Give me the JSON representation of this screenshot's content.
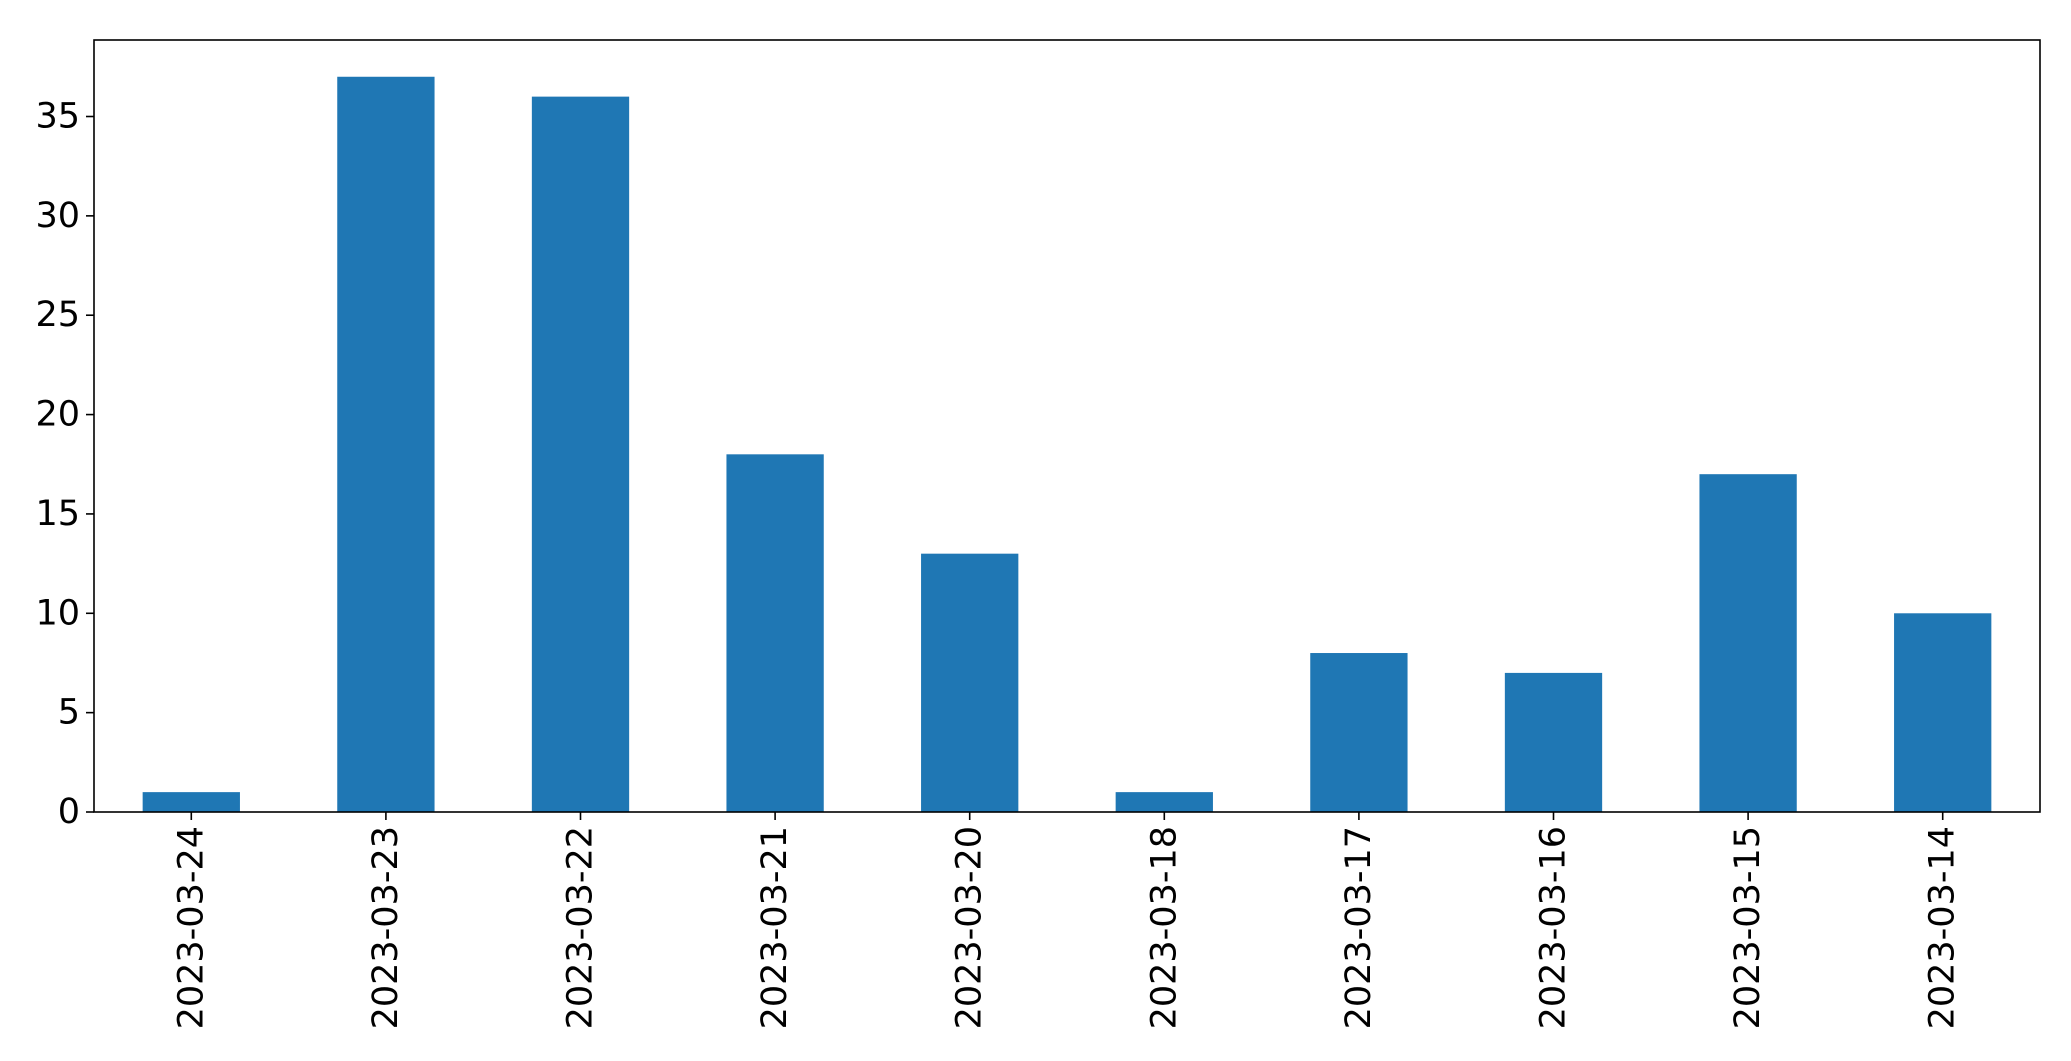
{
  "chart_data": {
    "type": "bar",
    "categories": [
      "2023-03-24",
      "2023-03-23",
      "2023-03-22",
      "2023-03-21",
      "2023-03-20",
      "2023-03-18",
      "2023-03-17",
      "2023-03-16",
      "2023-03-15",
      "2023-03-14"
    ],
    "values": [
      1,
      37,
      36,
      18,
      13,
      1,
      8,
      7,
      17,
      10
    ],
    "title": "",
    "xlabel": "",
    "ylabel": "",
    "ylim": [
      0,
      38.85
    ],
    "yticks": [
      0,
      5,
      10,
      15,
      20,
      25,
      30,
      35
    ],
    "grid": false,
    "legend": "none",
    "bar_color": "#1f77b4",
    "axis_color": "#000000",
    "tick_label_rotation": "vertical"
  }
}
